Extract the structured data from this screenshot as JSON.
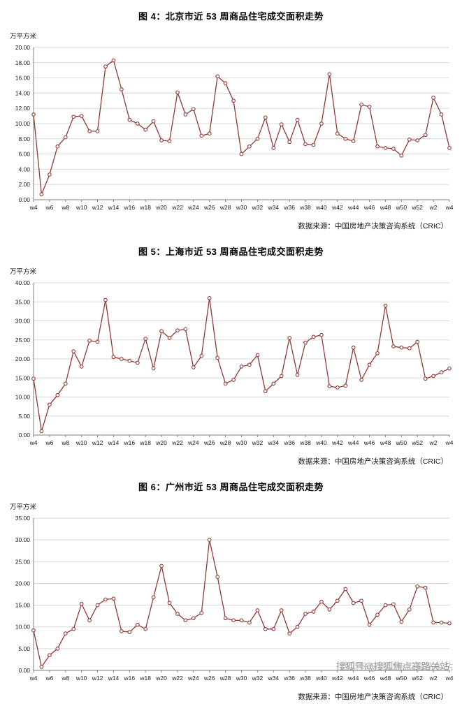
{
  "page": {
    "watermark": "搜狐号@搜狐焦点高路关站"
  },
  "chart_data": [
    {
      "type": "line",
      "title": "图 4：北京市近 53 周商品住宅成交面积走势",
      "unit_label": "万平方米",
      "source": "数据来源：中国房地产决策咨询系统（CRIC）",
      "ylim": [
        0,
        20
      ],
      "ytick_step": 2,
      "grid": true,
      "line_color": "#913A35",
      "x_tick_labels": [
        "w4",
        "w6",
        "w8",
        "w10",
        "w12",
        "w14",
        "w16",
        "w18",
        "w20",
        "w22",
        "w24",
        "w26",
        "w28",
        "w30",
        "w32",
        "w34",
        "w36",
        "w38",
        "w40",
        "w42",
        "w44",
        "w46",
        "w48",
        "w50",
        "w52",
        "w2",
        "w4"
      ],
      "values": [
        11.2,
        0.7,
        3.3,
        7.0,
        8.2,
        10.9,
        11.0,
        9.0,
        9.0,
        17.5,
        18.3,
        14.5,
        10.5,
        10.0,
        9.2,
        10.3,
        7.8,
        7.7,
        14.1,
        11.2,
        11.9,
        8.4,
        8.7,
        16.2,
        15.3,
        13.0,
        6.0,
        7.0,
        8.0,
        10.8,
        6.8,
        9.9,
        7.6,
        10.5,
        7.3,
        7.2,
        10.0,
        16.5,
        8.7,
        8.0,
        7.7,
        12.5,
        12.2,
        7.0,
        6.8,
        6.7,
        5.8,
        7.9,
        7.8,
        8.5,
        13.4,
        11.2,
        6.8
      ]
    },
    {
      "type": "line",
      "title": "图 5：上海市近 53 周商品住宅成交面积走势",
      "unit_label": "万平方米",
      "source": "数据来源：中国房地产决策咨询系统（CRIC）",
      "ylim": [
        0,
        40
      ],
      "ytick_step": 5,
      "grid": true,
      "line_color": "#913A35",
      "x_tick_labels": [
        "w4",
        "w6",
        "w8",
        "w10",
        "w12",
        "w14",
        "w16",
        "w18",
        "w20",
        "w22",
        "w24",
        "w26",
        "w28",
        "w30",
        "w32",
        "w34",
        "w36",
        "w38",
        "w40",
        "w42",
        "w44",
        "w46",
        "w48",
        "w50",
        "w52",
        "w2",
        "w4"
      ],
      "values": [
        14.8,
        1.0,
        8.0,
        10.5,
        13.5,
        22.0,
        18.0,
        24.8,
        24.5,
        35.5,
        20.5,
        20.0,
        19.5,
        19.0,
        25.3,
        17.5,
        27.3,
        25.5,
        27.5,
        27.8,
        17.8,
        20.8,
        36.0,
        20.3,
        13.5,
        14.5,
        18.0,
        18.5,
        21.0,
        11.5,
        13.5,
        15.5,
        25.5,
        15.8,
        24.3,
        25.8,
        26.3,
        12.8,
        12.5,
        13.0,
        23.0,
        14.5,
        18.5,
        21.5,
        34.0,
        23.3,
        23.0,
        22.8,
        24.5,
        14.8,
        15.5,
        16.5,
        17.5
      ]
    },
    {
      "type": "line",
      "title": "图 6：广州市近 53 周商品住宅成交面积走势",
      "unit_label": "万平方米",
      "source": "数据来源：中国房地产决策咨询系统（CRIC）",
      "ylim": [
        0,
        35
      ],
      "ytick_step": 5,
      "grid": true,
      "line_color": "#913A35",
      "x_tick_labels": [
        "w4",
        "w6",
        "w8",
        "w10",
        "w12",
        "w14",
        "w16",
        "w18",
        "w20",
        "w22",
        "w24",
        "w26",
        "w28",
        "w30",
        "w32",
        "w34",
        "w36",
        "w38",
        "w40",
        "w42",
        "w44",
        "w46",
        "w48",
        "w50",
        "w52",
        "w2",
        "w4"
      ],
      "values": [
        9.2,
        0.8,
        3.5,
        5.0,
        8.5,
        9.5,
        15.3,
        11.5,
        15.0,
        16.3,
        16.5,
        9.0,
        8.8,
        10.5,
        9.5,
        16.8,
        24.0,
        15.5,
        13.0,
        11.5,
        12.0,
        13.2,
        30.0,
        21.5,
        12.0,
        11.5,
        11.5,
        11.0,
        13.8,
        9.5,
        9.5,
        13.8,
        8.5,
        10.0,
        13.0,
        13.5,
        15.8,
        14.0,
        16.0,
        18.7,
        15.5,
        16.0,
        10.5,
        12.8,
        15.0,
        15.2,
        11.2,
        14.0,
        19.3,
        19.0,
        11.0,
        11.0,
        10.8
      ]
    }
  ]
}
